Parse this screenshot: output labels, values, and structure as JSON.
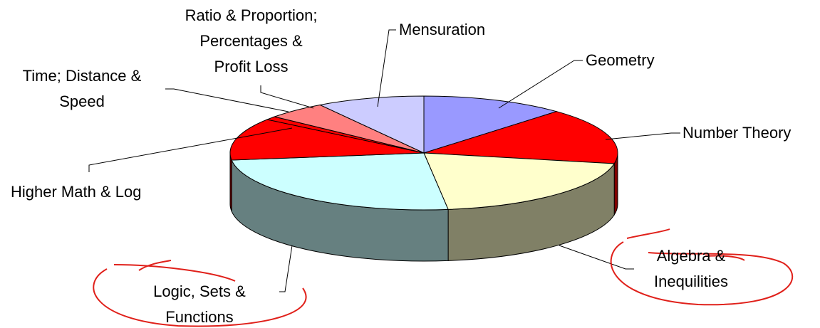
{
  "chart_data": {
    "type": "pie3d",
    "categories": [
      "Geometry",
      "Number Theory",
      "Algebra &\nInequilities",
      "Logic, Sets &\nFunctions",
      "Higher Math & Log",
      "Time; Distance &\nSpeed",
      "Ratio & Proportion;\nPercentages &\nProfit Loss",
      "Mensuration"
    ],
    "values": [
      12,
      16,
      20,
      25,
      12,
      1,
      5,
      9
    ],
    "colors": [
      "#9999ff",
      "#ff0000",
      "#ffffcc",
      "#ccffff",
      "#ff0000",
      "#ff0000",
      "#ff8080",
      "#ccccff"
    ]
  }
}
